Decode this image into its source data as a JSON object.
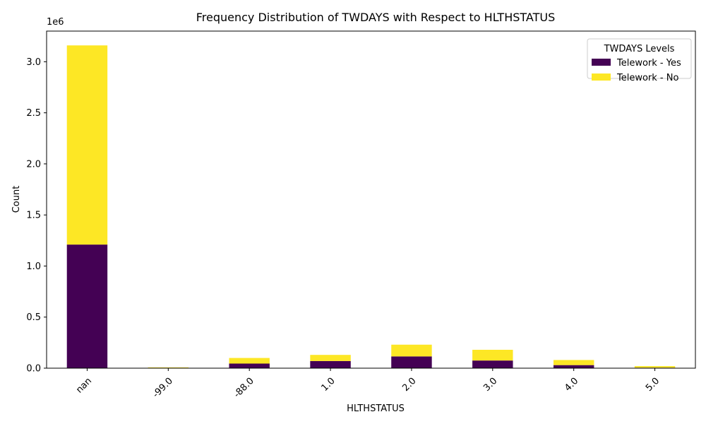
{
  "chart_data": {
    "type": "bar",
    "stacked": true,
    "title": "Frequency Distribution of TWDAYS with Respect to HLTHSTATUS",
    "xlabel": "HLTHSTATUS",
    "ylabel": "Count",
    "y_multiplier_label": "1e6",
    "ylim": [
      0,
      3300000
    ],
    "y_ticks": [
      0,
      500000,
      1000000,
      1500000,
      2000000,
      2500000,
      3000000
    ],
    "y_tick_labels": [
      "0.0",
      "0.5",
      "1.0",
      "1.5",
      "2.0",
      "2.5",
      "3.0"
    ],
    "categories": [
      "nan",
      "-99.0",
      "-88.0",
      "1.0",
      "2.0",
      "3.0",
      "4.0",
      "5.0"
    ],
    "series": [
      {
        "name": "Telework - Yes",
        "color": "#440154",
        "values": [
          1210000,
          4000,
          45000,
          70000,
          115000,
          75000,
          30000,
          5000
        ]
      },
      {
        "name": "Telework - No",
        "color": "#fde725",
        "values": [
          1950000,
          4000,
          55000,
          60000,
          115000,
          105000,
          50000,
          15000
        ]
      }
    ],
    "legend": {
      "title": "TWDAYS Levels",
      "placement": "top-right"
    },
    "grid": false
  }
}
